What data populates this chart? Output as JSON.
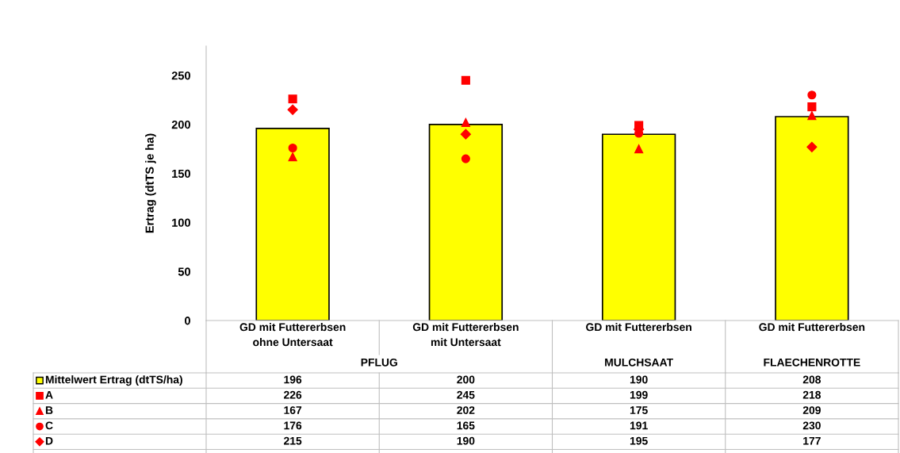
{
  "chart_data": {
    "type": "bar",
    "ylabel": "Ertrag (dtTS je ha)",
    "categories": [
      "GD mit Futtererbsen\nohne Untersaat",
      "GD mit Futtererbsen\nmit Untersaat",
      "GD mit Futtererbsen",
      "GD mit Futtererbsen"
    ],
    "annotations": [
      "PFLUG",
      "MULCHSAAT",
      "FLAECHENROTTE"
    ],
    "ylim": [
      0,
      280
    ],
    "yticks": [
      0,
      50,
      100,
      150,
      200,
      250
    ],
    "grid": false,
    "data_labels": true,
    "legend": "bottom",
    "series": [
      {
        "name": "Mittelwert Ertrag (dtTS/ha)",
        "color": "#ffff00",
        "marker": "square",
        "values": [
          196,
          200,
          190,
          208
        ]
      },
      {
        "name": "A",
        "type": "scatter",
        "color": "#ff0000",
        "marker": "square",
        "values": [
          226,
          245,
          199,
          218
        ]
      },
      {
        "name": "B",
        "type": "scatter",
        "color": "#ff0000",
        "marker": "triangle",
        "values": [
          167,
          202,
          175,
          209
        ]
      },
      {
        "name": "C",
        "type": "scatter",
        "color": "#ff0000",
        "marker": "circle",
        "values": [
          176,
          165,
          191,
          230
        ]
      },
      {
        "name": "D",
        "type": "scatter",
        "color": "#ff0000",
        "marker": "diamond",
        "values": [
          215,
          190,
          195,
          177
        ]
      }
    ]
  }
}
